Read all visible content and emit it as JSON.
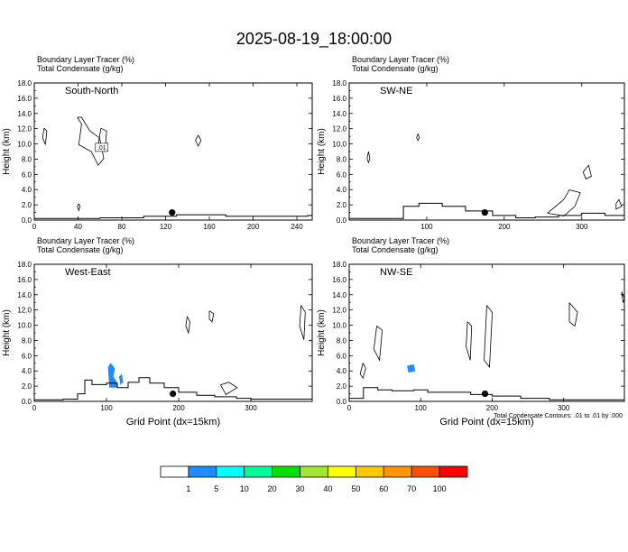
{
  "title": "2025-08-19_18:00:00",
  "panel_header": {
    "line1": "Boundary Layer Tracer   (%)",
    "line2": "Total Condensate   (g/kg)"
  },
  "axis": {
    "ylabel": "Height (km)",
    "xlabel": "Grid Point (dx=15km)",
    "yticks": [
      "0.0",
      "2.0",
      "4.0",
      "6.0",
      "8.0",
      "10.0",
      "12.0",
      "14.0",
      "16.0",
      "18.0"
    ]
  },
  "contour_note": "Total Condensate Contours: .01 to .01 by .000",
  "colorbar": {
    "labels": [
      "1",
      "5",
      "10",
      "20",
      "30",
      "40",
      "50",
      "60",
      "70",
      "100"
    ],
    "colors": [
      "#ffffff",
      "#1e8cff",
      "#00ffff",
      "#00ff96",
      "#00e100",
      "#a0e632",
      "#ffff00",
      "#ffc800",
      "#ff9600",
      "#ff5000",
      "#ff0000"
    ]
  },
  "chart_data": [
    {
      "type": "heatmap",
      "name": "South-North",
      "xlim": [
        0,
        254
      ],
      "ylim": [
        0,
        18
      ],
      "xticks": [
        0,
        40,
        80,
        120,
        160,
        200,
        240
      ],
      "marker_x": 126,
      "contour_label": ".01",
      "terrain": [
        [
          0,
          0.2
        ],
        [
          60,
          0.2
        ],
        [
          60,
          0.3
        ],
        [
          100,
          0.3
        ],
        [
          100,
          0.5
        ],
        [
          130,
          0.5
        ],
        [
          130,
          0.7
        ],
        [
          175,
          0.7
        ],
        [
          175,
          0.5
        ],
        [
          250,
          0.5
        ],
        [
          250,
          0.6
        ],
        [
          254,
          0.6
        ]
      ]
    },
    {
      "type": "heatmap",
      "name": "SW-NE",
      "xlim": [
        0,
        355
      ],
      "ylim": [
        0,
        18
      ],
      "xticks": [
        100,
        200,
        300
      ],
      "marker_x": 175,
      "terrain": [
        [
          0,
          0.2
        ],
        [
          50,
          0.2
        ],
        [
          70,
          1.8
        ],
        [
          90,
          2.2
        ],
        [
          120,
          1.8
        ],
        [
          150,
          1.2
        ],
        [
          185,
          0.6
        ],
        [
          215,
          0.3
        ],
        [
          240,
          0.4
        ],
        [
          270,
          0.6
        ],
        [
          300,
          0.9
        ],
        [
          330,
          0.6
        ],
        [
          355,
          0.6
        ]
      ]
    },
    {
      "type": "heatmap",
      "name": "West-East",
      "xlim": [
        0,
        385
      ],
      "ylim": [
        0,
        18
      ],
      "xticks": [
        0,
        100,
        200,
        300
      ],
      "marker_x": 192,
      "terrain": [
        [
          0,
          0.2
        ],
        [
          40,
          0.3
        ],
        [
          60,
          1
        ],
        [
          70,
          2.8
        ],
        [
          80,
          2.2
        ],
        [
          100,
          2.4
        ],
        [
          115,
          1.8
        ],
        [
          130,
          2.5
        ],
        [
          145,
          3.1
        ],
        [
          160,
          2.4
        ],
        [
          180,
          1.8
        ],
        [
          200,
          1.2
        ],
        [
          225,
          0.8
        ],
        [
          250,
          0.6
        ],
        [
          280,
          0.4
        ],
        [
          300,
          0.3
        ],
        [
          385,
          0.3
        ]
      ]
    },
    {
      "type": "heatmap",
      "name": "NW-SE",
      "xlim": [
        0,
        385
      ],
      "ylim": [
        0,
        18
      ],
      "xticks": [
        0,
        100,
        200,
        300
      ],
      "marker_x": 190,
      "terrain": [
        [
          0,
          0.4
        ],
        [
          20,
          1.8
        ],
        [
          40,
          1.5
        ],
        [
          60,
          1.4
        ],
        [
          90,
          1.5
        ],
        [
          110,
          1.2
        ],
        [
          140,
          1.2
        ],
        [
          170,
          0.9
        ],
        [
          200,
          0.7
        ],
        [
          240,
          0.4
        ],
        [
          280,
          0.2
        ],
        [
          385,
          0.2
        ]
      ]
    }
  ]
}
